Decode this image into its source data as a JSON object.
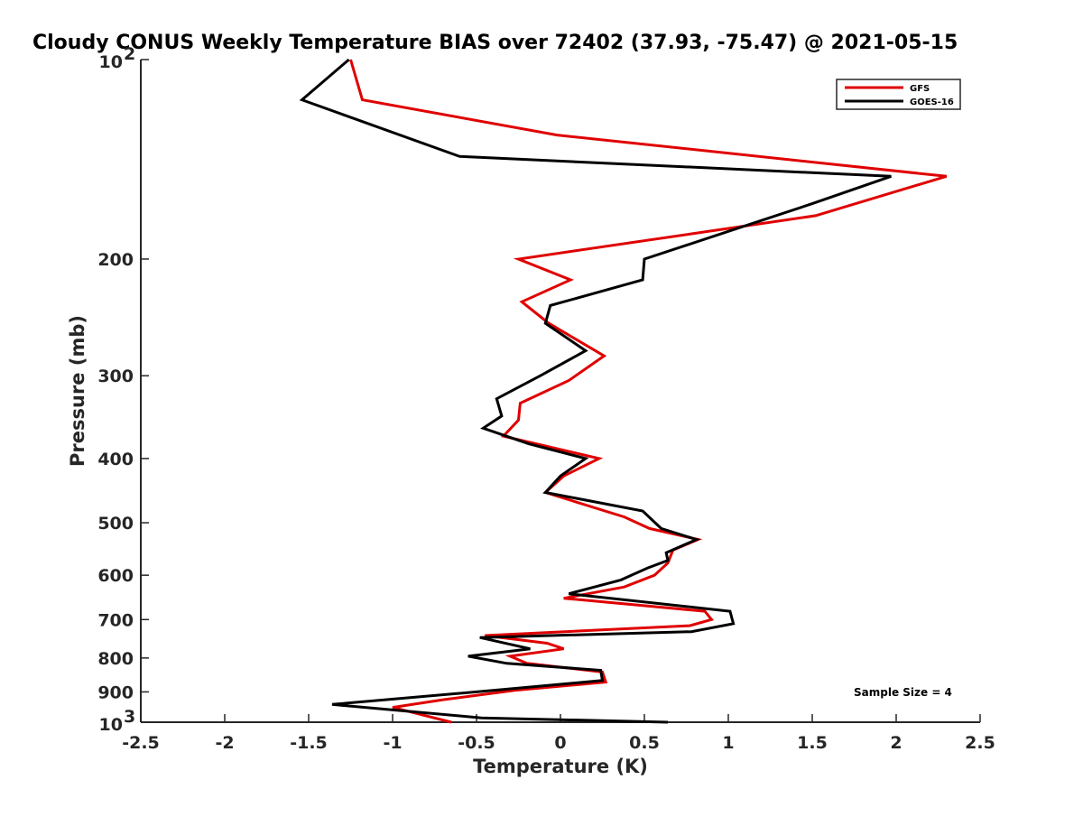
{
  "chart_data": {
    "type": "line",
    "title": "Cloudy CONUS Weekly Temperature BIAS over 72402 (37.93, -75.47) @ 2021-05-15",
    "xlabel": "Temperature (K)",
    "ylabel": "Pressure (mb)",
    "xlim": [
      -2.5,
      2.5
    ],
    "ylim": [
      100,
      1000
    ],
    "y_scale": "log",
    "y_reversed": true,
    "x_ticks": [
      "-2.5",
      "-2",
      "-1.5",
      "-1",
      "-0.5",
      "0",
      "0.5",
      "1",
      "1.5",
      "2",
      "2.5"
    ],
    "y_ticks": [
      {
        "value": 100,
        "base": "10",
        "exp": "2"
      },
      {
        "value": 200,
        "label": "200"
      },
      {
        "value": 300,
        "label": "300"
      },
      {
        "value": 400,
        "label": "400"
      },
      {
        "value": 500,
        "label": "500"
      },
      {
        "value": 600,
        "label": "600"
      },
      {
        "value": 700,
        "label": "700"
      },
      {
        "value": 800,
        "label": "800"
      },
      {
        "value": 900,
        "label": "900"
      },
      {
        "value": 1000,
        "base": "10",
        "exp": "3"
      }
    ],
    "grid": false,
    "legend_position": "top-right",
    "annotation": "Sample Size = 4",
    "series": [
      {
        "name": "GFS",
        "color": "#e00000",
        "points": [
          [
            -1.25,
            100
          ],
          [
            -1.18,
            115
          ],
          [
            -0.02,
            130
          ],
          [
            2.3,
            150
          ],
          [
            1.52,
            172
          ],
          [
            -0.25,
            200
          ],
          [
            0.06,
            215
          ],
          [
            -0.23,
            232
          ],
          [
            -0.07,
            250
          ],
          [
            0.26,
            280
          ],
          [
            0.05,
            305
          ],
          [
            -0.24,
            330
          ],
          [
            -0.25,
            350
          ],
          [
            -0.34,
            370
          ],
          [
            0.23,
            400
          ],
          [
            0.02,
            425
          ],
          [
            -0.09,
            450
          ],
          [
            0.38,
            490
          ],
          [
            0.53,
            510
          ],
          [
            0.82,
            530
          ],
          [
            0.67,
            550
          ],
          [
            0.64,
            575
          ],
          [
            0.56,
            600
          ],
          [
            0.38,
            625
          ],
          [
            0.02,
            650
          ],
          [
            0.86,
            680
          ],
          [
            0.9,
            700
          ],
          [
            0.77,
            715
          ],
          [
            -0.45,
            740
          ],
          [
            -0.08,
            760
          ],
          [
            0.02,
            775
          ],
          [
            -0.3,
            795
          ],
          [
            -0.2,
            815
          ],
          [
            0.25,
            840
          ],
          [
            0.27,
            870
          ],
          [
            -0.27,
            895
          ],
          [
            -0.7,
            925
          ],
          [
            -1.0,
            950
          ],
          [
            -0.65,
            1000
          ]
        ]
      },
      {
        "name": "GOES-16",
        "color": "#000000",
        "points": [
          [
            -1.26,
            100
          ],
          [
            -1.54,
            115
          ],
          [
            -0.6,
            140
          ],
          [
            1.97,
            150
          ],
          [
            1.5,
            165
          ],
          [
            0.5,
            200
          ],
          [
            0.49,
            215
          ],
          [
            -0.06,
            235
          ],
          [
            -0.09,
            250
          ],
          [
            0.15,
            275
          ],
          [
            -0.12,
            300
          ],
          [
            -0.38,
            325
          ],
          [
            -0.35,
            345
          ],
          [
            -0.46,
            360
          ],
          [
            -0.19,
            380
          ],
          [
            0.15,
            400
          ],
          [
            0.0,
            425
          ],
          [
            -0.09,
            450
          ],
          [
            0.49,
            480
          ],
          [
            0.6,
            510
          ],
          [
            0.81,
            530
          ],
          [
            0.63,
            555
          ],
          [
            0.64,
            570
          ],
          [
            0.52,
            585
          ],
          [
            0.36,
            610
          ],
          [
            0.05,
            640
          ],
          [
            1.01,
            680
          ],
          [
            1.03,
            710
          ],
          [
            0.78,
            730
          ],
          [
            -0.48,
            745
          ],
          [
            -0.18,
            775
          ],
          [
            -0.55,
            795
          ],
          [
            -0.32,
            815
          ],
          [
            0.24,
            835
          ],
          [
            0.25,
            865
          ],
          [
            -0.5,
            900
          ],
          [
            -1.36,
            940
          ],
          [
            -0.47,
            985
          ],
          [
            0.64,
            1000
          ]
        ]
      }
    ]
  }
}
